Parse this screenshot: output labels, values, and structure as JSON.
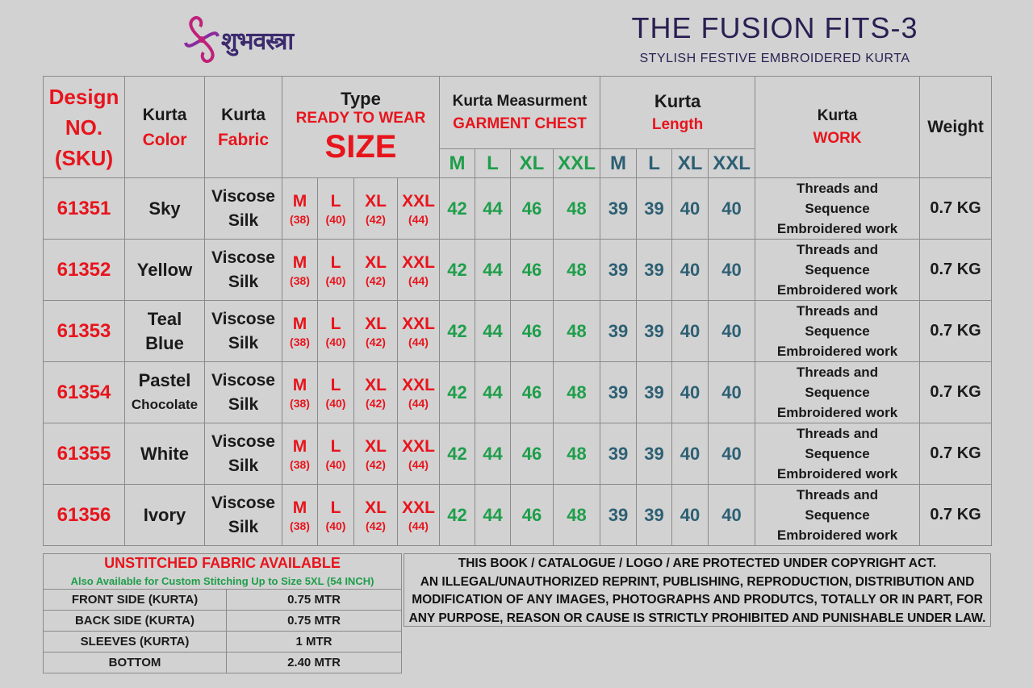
{
  "brand": {
    "logo_text": "शुभवस्त्रा"
  },
  "header": {
    "title": "THE FUSION FITS-3",
    "subtitle": "STYLISH FESTIVE EMBROIDERED KURTA"
  },
  "table": {
    "headers": {
      "design_line1": "Design",
      "design_line2": "NO.",
      "design_line3": "(SKU)",
      "color_line1": "Kurta",
      "color_line2": "Color",
      "fabric_line1": "Kurta",
      "fabric_line2": "Fabric",
      "type_line1": "Type",
      "type_line2": "READY TO WEAR",
      "type_line3": "SIZE",
      "meas_line1": "Kurta Measurment",
      "meas_line2": "GARMENT CHEST",
      "length_line1": "Kurta",
      "length_line2": "Length",
      "work_line1": "Kurta",
      "work_line2": "WORK",
      "weight": "Weight"
    },
    "chest_sizes": [
      "M",
      "L",
      "XL",
      "XXL"
    ],
    "length_sizes": [
      "M",
      "L",
      "XL",
      "XXL"
    ],
    "type_sizes": [
      {
        "label": "M",
        "num": "(38)"
      },
      {
        "label": "L",
        "num": "(40)"
      },
      {
        "label": "XL",
        "num": "(42)"
      },
      {
        "label": "XXL",
        "num": "(44)"
      }
    ],
    "rows": [
      {
        "sku": "61351",
        "color1": "Sky",
        "color2": "",
        "fabric1": "Viscose",
        "fabric2": "Silk",
        "chest": [
          "42",
          "44",
          "46",
          "48"
        ],
        "length": [
          "39",
          "39",
          "40",
          "40"
        ],
        "work1": "Threads and",
        "work2": "Sequence",
        "work3": "Embroidered work",
        "weight": "0.7 KG"
      },
      {
        "sku": "61352",
        "color1": "Yellow",
        "color2": "",
        "fabric1": "Viscose",
        "fabric2": "Silk",
        "chest": [
          "42",
          "44",
          "46",
          "48"
        ],
        "length": [
          "39",
          "39",
          "40",
          "40"
        ],
        "work1": "Threads and",
        "work2": "Sequence",
        "work3": "Embroidered work",
        "weight": "0.7 KG"
      },
      {
        "sku": "61353",
        "color1": "Teal",
        "color2": "Blue",
        "fabric1": "Viscose",
        "fabric2": "Silk",
        "chest": [
          "42",
          "44",
          "46",
          "48"
        ],
        "length": [
          "39",
          "39",
          "40",
          "40"
        ],
        "work1": "Threads and",
        "work2": "Sequence",
        "work3": "Embroidered work",
        "weight": "0.7 KG"
      },
      {
        "sku": "61354",
        "color1": "Pastel",
        "color2": "Chocolate",
        "fabric1": "Viscose",
        "fabric2": "Silk",
        "chest": [
          "42",
          "44",
          "46",
          "48"
        ],
        "length": [
          "39",
          "39",
          "40",
          "40"
        ],
        "work1": "Threads and",
        "work2": "Sequence",
        "work3": "Embroidered work",
        "weight": "0.7 KG"
      },
      {
        "sku": "61355",
        "color1": "White",
        "color2": "",
        "fabric1": "Viscose",
        "fabric2": "Silk",
        "chest": [
          "42",
          "44",
          "46",
          "48"
        ],
        "length": [
          "39",
          "39",
          "40",
          "40"
        ],
        "work1": "Threads and",
        "work2": "Sequence",
        "work3": "Embroidered work",
        "weight": "0.7 KG"
      },
      {
        "sku": "61356",
        "color1": "Ivory",
        "color2": "",
        "fabric1": "Viscose",
        "fabric2": "Silk",
        "chest": [
          "42",
          "44",
          "46",
          "48"
        ],
        "length": [
          "39",
          "39",
          "40",
          "40"
        ],
        "work1": "Threads and",
        "work2": "Sequence",
        "work3": "Embroidered work",
        "weight": "0.7 KG"
      }
    ]
  },
  "fabric_info": {
    "heading": "UNSTITCHED FABRIC AVAILABLE",
    "subheading": "Also Available for Custom Stitching Up to Size 5XL (54 INCH)",
    "rows": [
      {
        "part": "FRONT SIDE (KURTA)",
        "qty": "0.75 MTR"
      },
      {
        "part": "BACK SIDE (KURTA)",
        "qty": "0.75 MTR"
      },
      {
        "part": "SLEEVES (KURTA)",
        "qty": "1 MTR"
      },
      {
        "part": "BOTTOM",
        "qty": "2.40 MTR"
      }
    ]
  },
  "copyright": {
    "line1": "THIS BOOK / CATALOGUE  / LOGO / ARE  PROTECTED UNDER COPYRIGHT ACT.",
    "line2": "AN ILLEGAL/UNAUTHORIZED REPRINT, PUBLISHING, REPRODUCTION, DISTRIBUTION AND",
    "line3": "MODIFICATION OF ANY IMAGES, PHOTOGRAPHS AND PRODUTCS,  TOTALLY OR IN PART, FOR",
    "line4": "ANY PURPOSE, REASON OR CAUSE IS STRICTLY PROHIBITED AND PUNISHABLE UNDER LAW."
  },
  "colors": {
    "accent_red": "#e8141c",
    "chest_green": "#1e9e4a",
    "length_teal": "#2d5f73",
    "title_purple": "#2a1f52",
    "logo_magenta": "#c0207a"
  }
}
